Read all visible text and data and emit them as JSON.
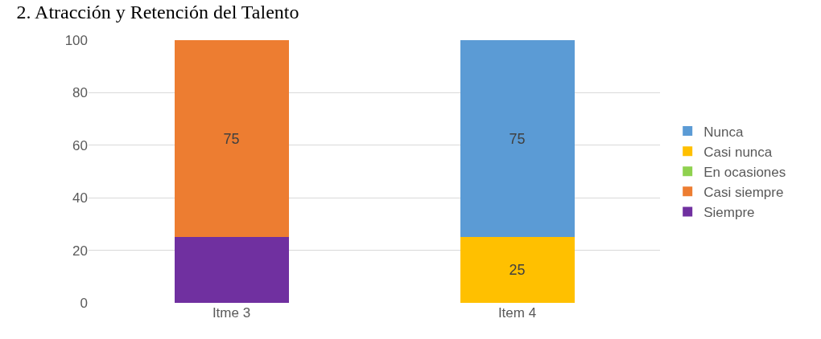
{
  "chart_data": {
    "type": "bar",
    "title": "2. Atracción y Retención del Talento",
    "stacked": true,
    "categories": [
      "Itme 3",
      "Item 4"
    ],
    "series": [
      {
        "name": "Siempre",
        "color": "#7030a0",
        "values": [
          25,
          null
        ],
        "value_labels": [
          null,
          null
        ]
      },
      {
        "name": "Casi siempre",
        "color": "#ed7d31",
        "values": [
          75,
          null
        ],
        "value_labels": [
          "75",
          null
        ]
      },
      {
        "name": "En ocasiones",
        "color": "#8fd14f",
        "values": [
          null,
          null
        ],
        "value_labels": [
          null,
          null
        ]
      },
      {
        "name": "Casi nunca",
        "color": "#ffc000",
        "values": [
          null,
          25
        ],
        "value_labels": [
          null,
          "25"
        ]
      },
      {
        "name": "Nunca",
        "color": "#5b9bd5",
        "values": [
          null,
          75
        ],
        "value_labels": [
          null,
          "75"
        ]
      }
    ],
    "ylim": [
      0,
      100
    ],
    "yticks": [
      0,
      20,
      40,
      60,
      80,
      100
    ],
    "grid": "y",
    "legend": "right"
  }
}
